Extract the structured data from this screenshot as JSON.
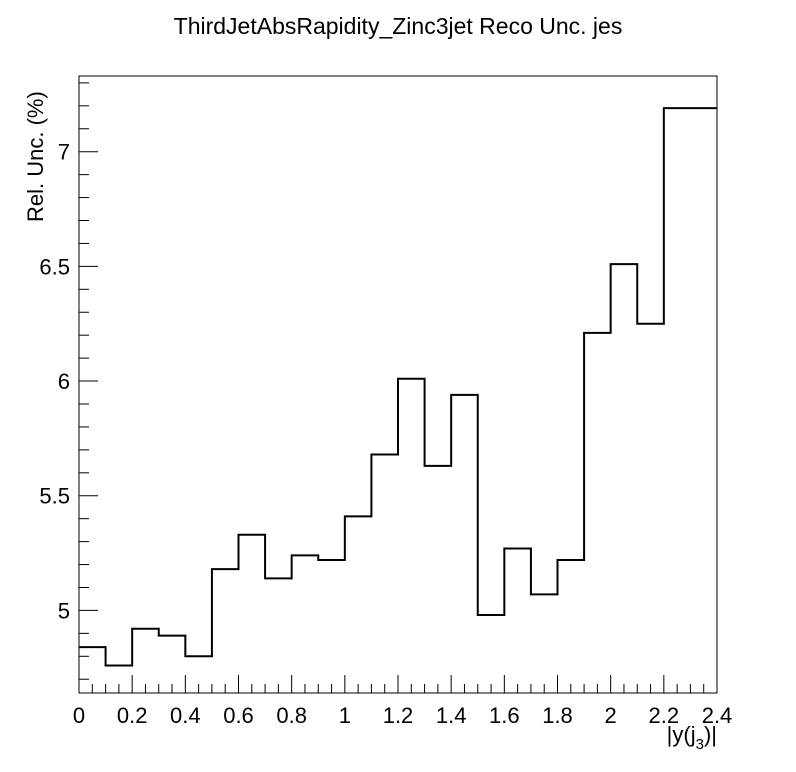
{
  "chart_data": {
    "type": "histogram-step",
    "title": "ThirdJetAbsRapidity_Zinc3jet Reco Unc. jes",
    "xlabel": "|y(j",
    "xlabel_subscript": "3",
    "xlabel_suffix": ")|",
    "ylabel": "Rel. Unc. (%)",
    "xlim": [
      0,
      2.4
    ],
    "ylim": [
      4.64,
      7.33
    ],
    "x_ticks": [
      {
        "value": 0,
        "label": "0"
      },
      {
        "value": 0.2,
        "label": "0.2"
      },
      {
        "value": 0.4,
        "label": "0.4"
      },
      {
        "value": 0.6,
        "label": "0.6"
      },
      {
        "value": 0.8,
        "label": "0.8"
      },
      {
        "value": 1.0,
        "label": "1"
      },
      {
        "value": 1.2,
        "label": "1.2"
      },
      {
        "value": 1.4,
        "label": "1.4"
      },
      {
        "value": 1.6,
        "label": "1.6"
      },
      {
        "value": 1.8,
        "label": "1.8"
      },
      {
        "value": 2.0,
        "label": "2"
      },
      {
        "value": 2.2,
        "label": "2.2"
      },
      {
        "value": 2.4,
        "label": "2.4"
      }
    ],
    "y_ticks": [
      {
        "value": 5,
        "label": "5"
      },
      {
        "value": 5.5,
        "label": "5.5"
      },
      {
        "value": 6,
        "label": "6"
      },
      {
        "value": 6.5,
        "label": "6.5"
      },
      {
        "value": 7,
        "label": "7"
      }
    ],
    "bin_edges": [
      0,
      0.1,
      0.2,
      0.3,
      0.4,
      0.5,
      0.6,
      0.7,
      0.8,
      0.9,
      1.0,
      1.1,
      1.2,
      1.3,
      1.4,
      1.5,
      1.6,
      1.7,
      1.8,
      1.9,
      2.0,
      2.1,
      2.2,
      2.3,
      2.4
    ],
    "values": [
      4.84,
      4.76,
      4.92,
      4.89,
      4.8,
      5.18,
      5.33,
      5.14,
      5.24,
      5.22,
      5.41,
      5.68,
      6.01,
      5.63,
      5.94,
      4.98,
      5.27,
      5.07,
      5.22,
      6.21,
      6.51,
      6.25,
      7.19,
      7.19
    ],
    "grid": false,
    "legend": "none"
  }
}
